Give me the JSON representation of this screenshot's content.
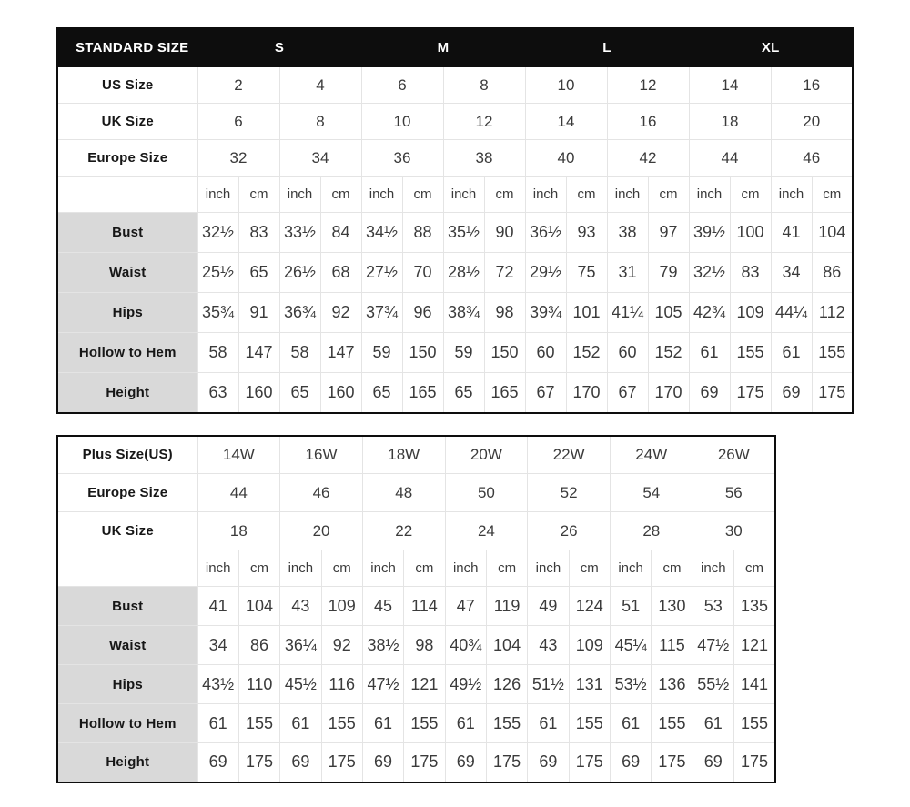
{
  "colors": {
    "header_bg": "#0d0d0d",
    "header_text": "#ffffff",
    "label_bg": "#d9d9d9",
    "grid_line": "#e4e4e4",
    "outer_border": "#0d0d0d",
    "text_dark": "#161616",
    "text_num": "#3b3b3b"
  },
  "standard_table": {
    "title": "STANDARD SIZE",
    "size_groups": [
      "S",
      "M",
      "L",
      "XL"
    ],
    "size_rows": [
      {
        "label": "US Size",
        "values": [
          "2",
          "4",
          "6",
          "8",
          "10",
          "12",
          "14",
          "16"
        ]
      },
      {
        "label": "UK Size",
        "values": [
          "6",
          "8",
          "10",
          "12",
          "14",
          "16",
          "18",
          "20"
        ]
      },
      {
        "label": "Europe Size",
        "values": [
          "32",
          "34",
          "36",
          "38",
          "40",
          "42",
          "44",
          "46"
        ]
      }
    ],
    "unit_headers": [
      "inch",
      "cm"
    ],
    "measurement_rows": [
      {
        "label": "Bust",
        "values": [
          "32½",
          "83",
          "33½",
          "84",
          "34½",
          "88",
          "35½",
          "90",
          "36½",
          "93",
          "38",
          "97",
          "39½",
          "100",
          "41",
          "104"
        ]
      },
      {
        "label": "Waist",
        "values": [
          "25½",
          "65",
          "26½",
          "68",
          "27½",
          "70",
          "28½",
          "72",
          "29½",
          "75",
          "31",
          "79",
          "32½",
          "83",
          "34",
          "86"
        ]
      },
      {
        "label": "Hips",
        "values": [
          "35¾",
          "91",
          "36¾",
          "92",
          "37¾",
          "96",
          "38¾",
          "98",
          "39¾",
          "101",
          "41¼",
          "105",
          "42¾",
          "109",
          "44¼",
          "112"
        ]
      },
      {
        "label": "Hollow to Hem",
        "values": [
          "58",
          "147",
          "58",
          "147",
          "59",
          "150",
          "59",
          "150",
          "60",
          "152",
          "60",
          "152",
          "61",
          "155",
          "61",
          "155"
        ]
      },
      {
        "label": "Height",
        "values": [
          "63",
          "160",
          "65",
          "160",
          "65",
          "165",
          "65",
          "165",
          "67",
          "170",
          "67",
          "170",
          "69",
          "175",
          "69",
          "175"
        ]
      }
    ]
  },
  "plus_table": {
    "size_rows": [
      {
        "label": "Plus Size(US)",
        "values": [
          "14W",
          "16W",
          "18W",
          "20W",
          "22W",
          "24W",
          "26W"
        ]
      },
      {
        "label": "Europe Size",
        "values": [
          "44",
          "46",
          "48",
          "50",
          "52",
          "54",
          "56"
        ]
      },
      {
        "label": "UK Size",
        "values": [
          "18",
          "20",
          "22",
          "24",
          "26",
          "28",
          "30"
        ]
      }
    ],
    "unit_headers": [
      "inch",
      "cm"
    ],
    "measurement_rows": [
      {
        "label": "Bust",
        "values": [
          "41",
          "104",
          "43",
          "109",
          "45",
          "114",
          "47",
          "119",
          "49",
          "124",
          "51",
          "130",
          "53",
          "135"
        ]
      },
      {
        "label": "Waist",
        "values": [
          "34",
          "86",
          "36¼",
          "92",
          "38½",
          "98",
          "40¾",
          "104",
          "43",
          "109",
          "45¼",
          "115",
          "47½",
          "121"
        ]
      },
      {
        "label": "Hips",
        "values": [
          "43½",
          "110",
          "45½",
          "116",
          "47½",
          "121",
          "49½",
          "126",
          "51½",
          "131",
          "53½",
          "136",
          "55½",
          "141"
        ]
      },
      {
        "label": "Hollow to Hem",
        "values": [
          "61",
          "155",
          "61",
          "155",
          "61",
          "155",
          "61",
          "155",
          "61",
          "155",
          "61",
          "155",
          "61",
          "155"
        ]
      },
      {
        "label": "Height",
        "values": [
          "69",
          "175",
          "69",
          "175",
          "69",
          "175",
          "69",
          "175",
          "69",
          "175",
          "69",
          "175",
          "69",
          "175"
        ]
      }
    ]
  }
}
